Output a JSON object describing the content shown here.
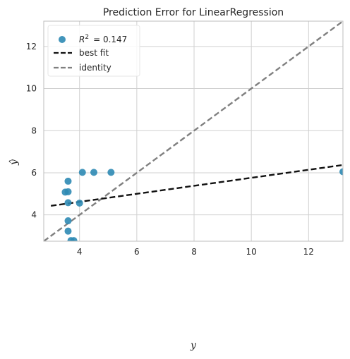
{
  "chart_data": {
    "type": "scatter",
    "title": "Prediction Error for LinearRegression",
    "xlabel": "y",
    "ylabel": "ŷ",
    "xlim": [
      2.75,
      13.2
    ],
    "ylim": [
      2.75,
      13.2
    ],
    "xticks": [
      4,
      6,
      8,
      10,
      12
    ],
    "yticks": [
      4,
      6,
      8,
      10,
      12
    ],
    "grid": true,
    "legend_position": "top-left",
    "colors": {
      "points": "#2E8AB4",
      "best_fit": "#111111",
      "identity": "#808080",
      "grid": "#D0D0D0",
      "axes": "#BDBDBD"
    },
    "series": [
      {
        "kind": "scatter",
        "legend_label": "R² = 0.147",
        "legend_prefix": "R",
        "legend_sup": "2",
        "legend_value": "= 0.147",
        "points": [
          {
            "x": 3.5,
            "y": 5.08
          },
          {
            "x": 3.6,
            "y": 5.1
          },
          {
            "x": 3.6,
            "y": 5.6
          },
          {
            "x": 3.6,
            "y": 4.58
          },
          {
            "x": 3.6,
            "y": 3.72
          },
          {
            "x": 3.6,
            "y": 3.23
          },
          {
            "x": 3.7,
            "y": 2.78
          },
          {
            "x": 3.8,
            "y": 2.78
          },
          {
            "x": 4.0,
            "y": 4.56
          },
          {
            "x": 4.1,
            "y": 6.02
          },
          {
            "x": 4.5,
            "y": 6.02
          },
          {
            "x": 5.1,
            "y": 6.02
          },
          {
            "x": 13.2,
            "y": 6.05
          }
        ]
      },
      {
        "kind": "line",
        "legend_label": "best fit",
        "style": "dashed",
        "points": [
          {
            "x": 3.0,
            "y": 4.43
          },
          {
            "x": 13.2,
            "y": 6.37
          }
        ]
      },
      {
        "kind": "line",
        "legend_label": "identity",
        "style": "dashed",
        "points": [
          {
            "x": 2.75,
            "y": 2.75
          },
          {
            "x": 13.2,
            "y": 13.2
          }
        ]
      }
    ]
  }
}
